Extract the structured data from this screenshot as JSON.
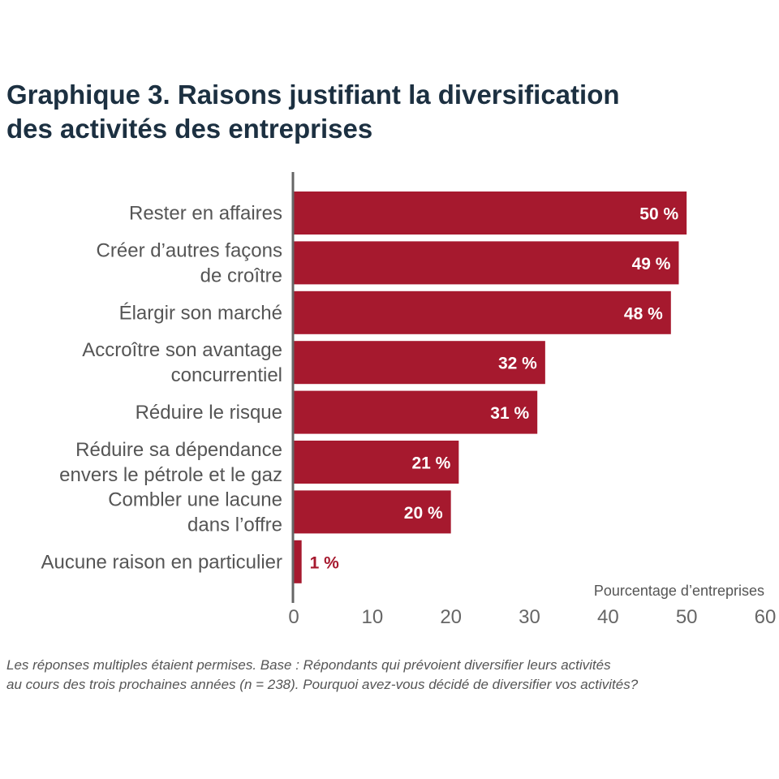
{
  "colors": {
    "bar": "#a6192e",
    "title": "#1c3041",
    "axis": "#666666",
    "label_outside": "#a6192e"
  },
  "chart_data": {
    "type": "bar",
    "orientation": "horizontal",
    "title_lines": [
      "Graphique 3. Raisons justifiant la diversification",
      "des activités des entreprises"
    ],
    "categories": [
      [
        "Rester en affaires"
      ],
      [
        "Créer d’autres façons",
        "de croître"
      ],
      [
        "Élargir son marché"
      ],
      [
        "Accroître son avantage",
        "concurrentiel"
      ],
      [
        "Réduire le risque"
      ],
      [
        "Réduire sa dépendance",
        "envers le pétrole et le gaz"
      ],
      [
        "Combler une lacune",
        "dans l’offre"
      ],
      [
        "Aucune raison en particulier"
      ]
    ],
    "values": [
      50,
      49,
      48,
      32,
      31,
      21,
      20,
      1
    ],
    "value_labels": [
      "50 %",
      "49 %",
      "48 %",
      "32 %",
      "31 %",
      "21 %",
      "20 %",
      "1 %"
    ],
    "xlabel": "Pourcentage d’entreprises",
    "xlim": [
      0,
      60
    ],
    "xticks": [
      "0",
      "10",
      "20",
      "30",
      "40",
      "50",
      "60"
    ]
  },
  "footnote_lines": [
    "Les réponses multiples étaient permises. Base : Répondants qui prévoient diversifier leurs activités",
    "au cours des trois prochaines années (n = 238). Pourquoi avez-vous décidé de diversifier vos activités?"
  ]
}
